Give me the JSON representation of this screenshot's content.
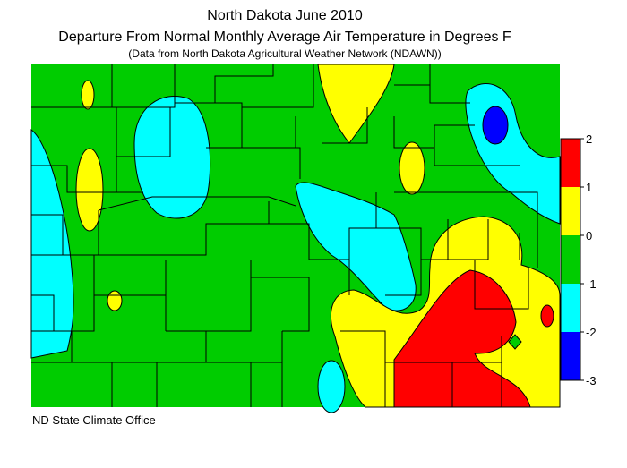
{
  "header": {
    "title": "North Dakota June 2010",
    "subtitle": "Departure From Normal Monthly Average Air Temperature in Degrees F",
    "source": "(Data from North Dakota Agricultural Weather Network (NDAWN))"
  },
  "footer": "ND State Climate Office",
  "scale": {
    "ticks": [
      2,
      1,
      0,
      -1,
      -2,
      -3
    ],
    "colors": [
      "#ff0000",
      "#ffff00",
      "#00cc00",
      "#00ffff",
      "#0000ff"
    ]
  }
}
